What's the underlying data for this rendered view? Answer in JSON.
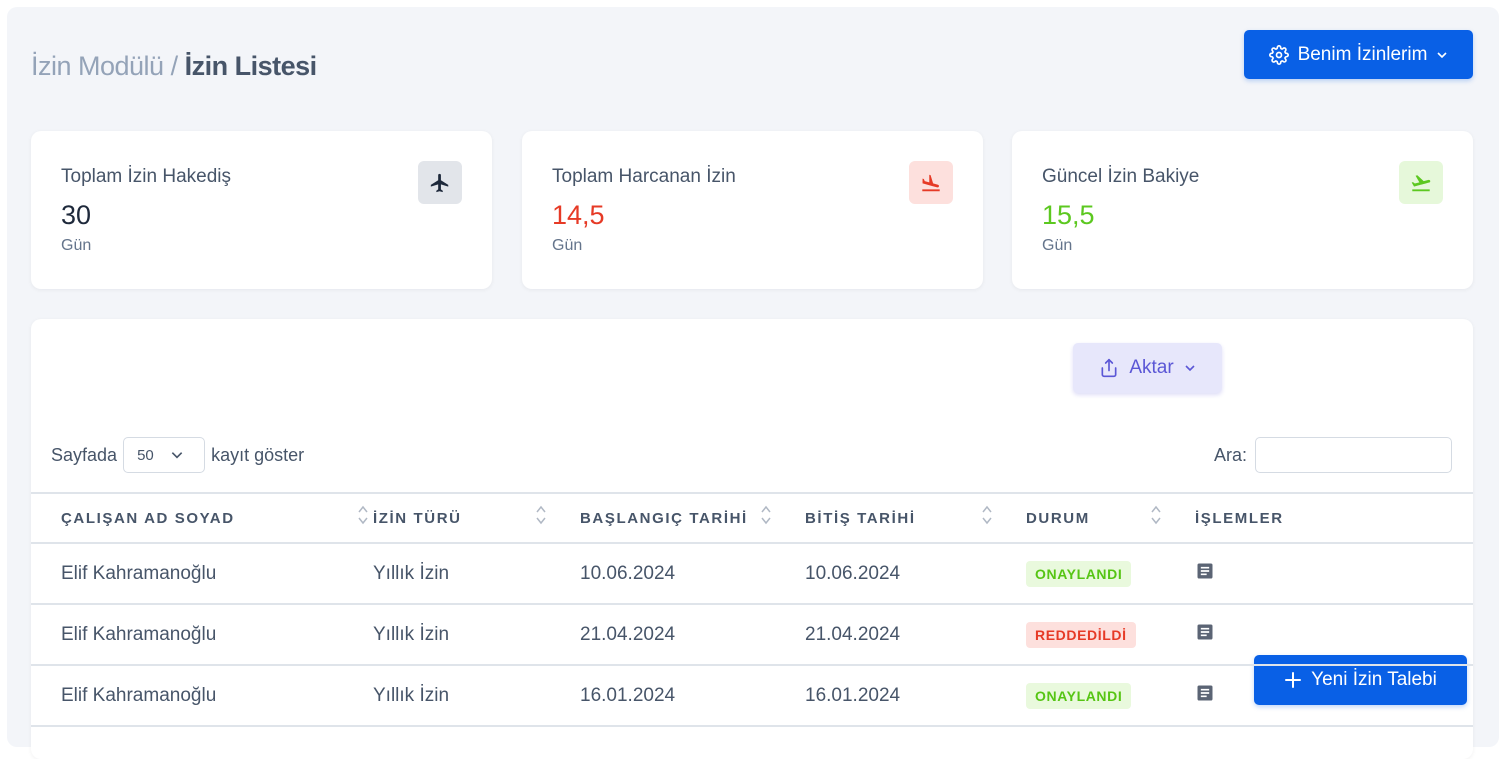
{
  "breadcrumb": {
    "parent": "İzin Modülü",
    "separator": " / ",
    "current": "İzin Listesi"
  },
  "header": {
    "my_leaves_label": "Benim İzinlerim"
  },
  "stats": [
    {
      "label": "Toplam İzin Hakediş",
      "value": "30",
      "unit": "Gün",
      "value_color": "#1e293b",
      "icon": "airplane-icon",
      "icon_bg": "#e2e5ea"
    },
    {
      "label": "Toplam Harcanan İzin",
      "value": "14,5",
      "unit": "Gün",
      "value_color": "#e63a26",
      "icon": "flight-land-icon",
      "icon_bg": "#fde0dd"
    },
    {
      "label": "Güncel İzin Bakiye",
      "value": "15,5",
      "unit": "Gün",
      "value_color": "#5cc820",
      "icon": "flight-takeoff-icon",
      "icon_bg": "#e6f8da"
    }
  ],
  "toolbar": {
    "export_label": "Aktar",
    "new_request_label": "Yeni İzin Talebi"
  },
  "length_menu": {
    "prefix": "Sayfada",
    "selected": "50",
    "suffix": "kayıt göster"
  },
  "search": {
    "label": "Ara:",
    "value": "",
    "placeholder": ""
  },
  "table": {
    "columns": [
      "ÇALIŞAN AD SOYAD",
      "İZİN TÜRÜ",
      "BAŞLANGIÇ TARİHİ",
      "BİTİŞ TARİHİ",
      "DURUM",
      "İŞLEMLER"
    ],
    "rows": [
      {
        "employee": "Elif Kahramanoğlu",
        "type": "Yıllık İzin",
        "start": "10.06.2024",
        "end": "10.06.2024",
        "status": "ONAYLANDI",
        "status_kind": "approved"
      },
      {
        "employee": "Elif Kahramanoğlu",
        "type": "Yıllık İzin",
        "start": "21.04.2024",
        "end": "21.04.2024",
        "status": "REDDEDİLDİ",
        "status_kind": "rejected"
      },
      {
        "employee": "Elif Kahramanoğlu",
        "type": "Yıllık İzin",
        "start": "16.01.2024",
        "end": "16.01.2024",
        "status": "ONAYLANDI",
        "status_kind": "approved"
      }
    ]
  },
  "colors": {
    "primary": "#0960e6",
    "approved": "#56c514",
    "rejected": "#e63a26",
    "export_accent": "#5b57d6"
  }
}
